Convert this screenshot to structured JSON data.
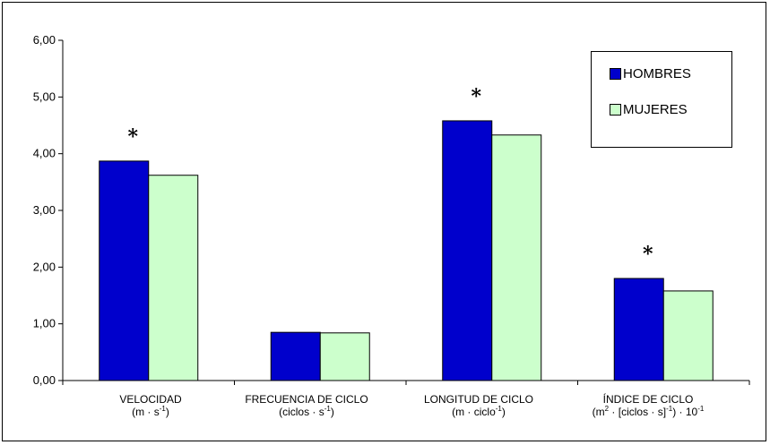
{
  "chart_data": {
    "type": "bar",
    "categories": [
      "VELOCIDAD",
      "FRECUENCIA DE CICLO",
      "LONGITUD DE CICLO",
      "ÍNDICE DE CICLO"
    ],
    "category_units": [
      {
        "pre": "(m · s",
        "sup": "-1",
        "post": ")"
      },
      {
        "pre": "(ciclos · s",
        "sup": "-1",
        "post": ")"
      },
      {
        "pre": "(m · ciclo",
        "sup": "-1",
        "post": ")"
      },
      {
        "pre": "(m",
        "sup": "2",
        "mid": " · [ciclos · s]",
        "sup2": "-1",
        "post": ") · 10",
        "sup3": "-1"
      }
    ],
    "series": [
      {
        "name": "HOMBRES",
        "color": "#0000cc",
        "values": [
          3.87,
          0.85,
          4.58,
          1.8
        ]
      },
      {
        "name": "MUJERES",
        "color": "#ccffcc",
        "values": [
          3.62,
          0.84,
          4.33,
          1.58
        ]
      }
    ],
    "significance_marker": "*",
    "significant": [
      true,
      false,
      true,
      true
    ],
    "ylim": [
      0,
      6
    ],
    "yticks": [
      "0,00",
      "1,00",
      "2,00",
      "3,00",
      "4,00",
      "5,00",
      "6,00"
    ],
    "ytick_values": [
      0,
      1,
      2,
      3,
      4,
      5,
      6
    ],
    "legend_position": "top-right",
    "grid": false
  }
}
